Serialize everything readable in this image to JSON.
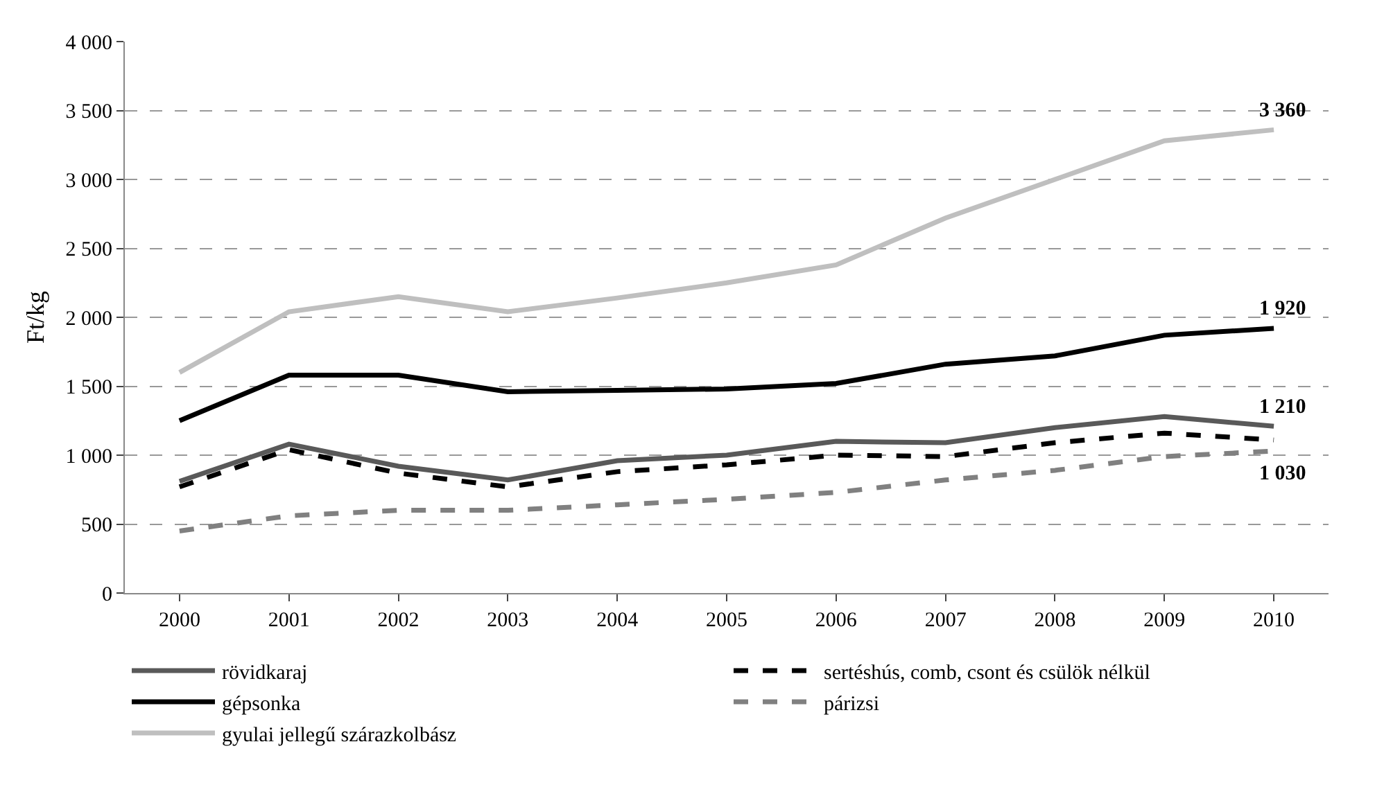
{
  "chart_data": {
    "type": "line",
    "ylabel": "Ft/kg",
    "categories": [
      "2000",
      "2001",
      "2002",
      "2003",
      "2004",
      "2005",
      "2006",
      "2007",
      "2008",
      "2009",
      "2010"
    ],
    "series": [
      {
        "name": "rövidkaraj",
        "color": "#595959",
        "line_style": "solid",
        "values": [
          810,
          1080,
          920,
          820,
          960,
          1000,
          1100,
          1090,
          1200,
          1280,
          1210
        ]
      },
      {
        "name": "sertéshús, comb, csont és csülök nélkül",
        "color": "#000000",
        "line_style": "dashed",
        "values": [
          770,
          1040,
          870,
          770,
          880,
          930,
          1000,
          990,
          1090,
          1160,
          1110
        ]
      },
      {
        "name": "gépsonka",
        "color": "#000000",
        "line_style": "solid",
        "values": [
          1250,
          1580,
          1580,
          1460,
          1470,
          1480,
          1520,
          1660,
          1720,
          1870,
          1920
        ]
      },
      {
        "name": "párizsi",
        "color": "#808080",
        "line_style": "dashed",
        "values": [
          450,
          560,
          600,
          600,
          640,
          680,
          730,
          820,
          890,
          990,
          1030
        ]
      },
      {
        "name": "gyulai jellegű szárazkolbász",
        "color": "#bfbfbf",
        "line_style": "solid",
        "values": [
          1600,
          2040,
          2150,
          2040,
          2140,
          2250,
          2380,
          2720,
          3000,
          3280,
          3360
        ]
      }
    ],
    "ylim": [
      0,
      4000
    ],
    "yticks": [
      0,
      {
        "value": 500,
        "label": "500"
      },
      {
        "value": 1000,
        "label": "1 000"
      },
      {
        "value": 1500,
        "label": "1 500"
      },
      {
        "value": 2000,
        "label": "2 000"
      },
      {
        "value": 2500,
        "label": "2 500"
      },
      {
        "value": 3000,
        "label": "3 000"
      },
      {
        "value": 3500,
        "label": "3 500"
      },
      {
        "value": 4000,
        "label": "4 000"
      }
    ],
    "grid": "y",
    "legend": "bottom",
    "marker": "none",
    "annotations": [
      {
        "text": "3 360",
        "x": "2010",
        "y": 3360
      },
      {
        "text": "1 920",
        "x": "2010",
        "y": 1920
      },
      {
        "text": "1 210",
        "x": "2010",
        "y": 1210
      },
      {
        "text": "1 030",
        "x": "2010",
        "y": 1030
      }
    ]
  }
}
